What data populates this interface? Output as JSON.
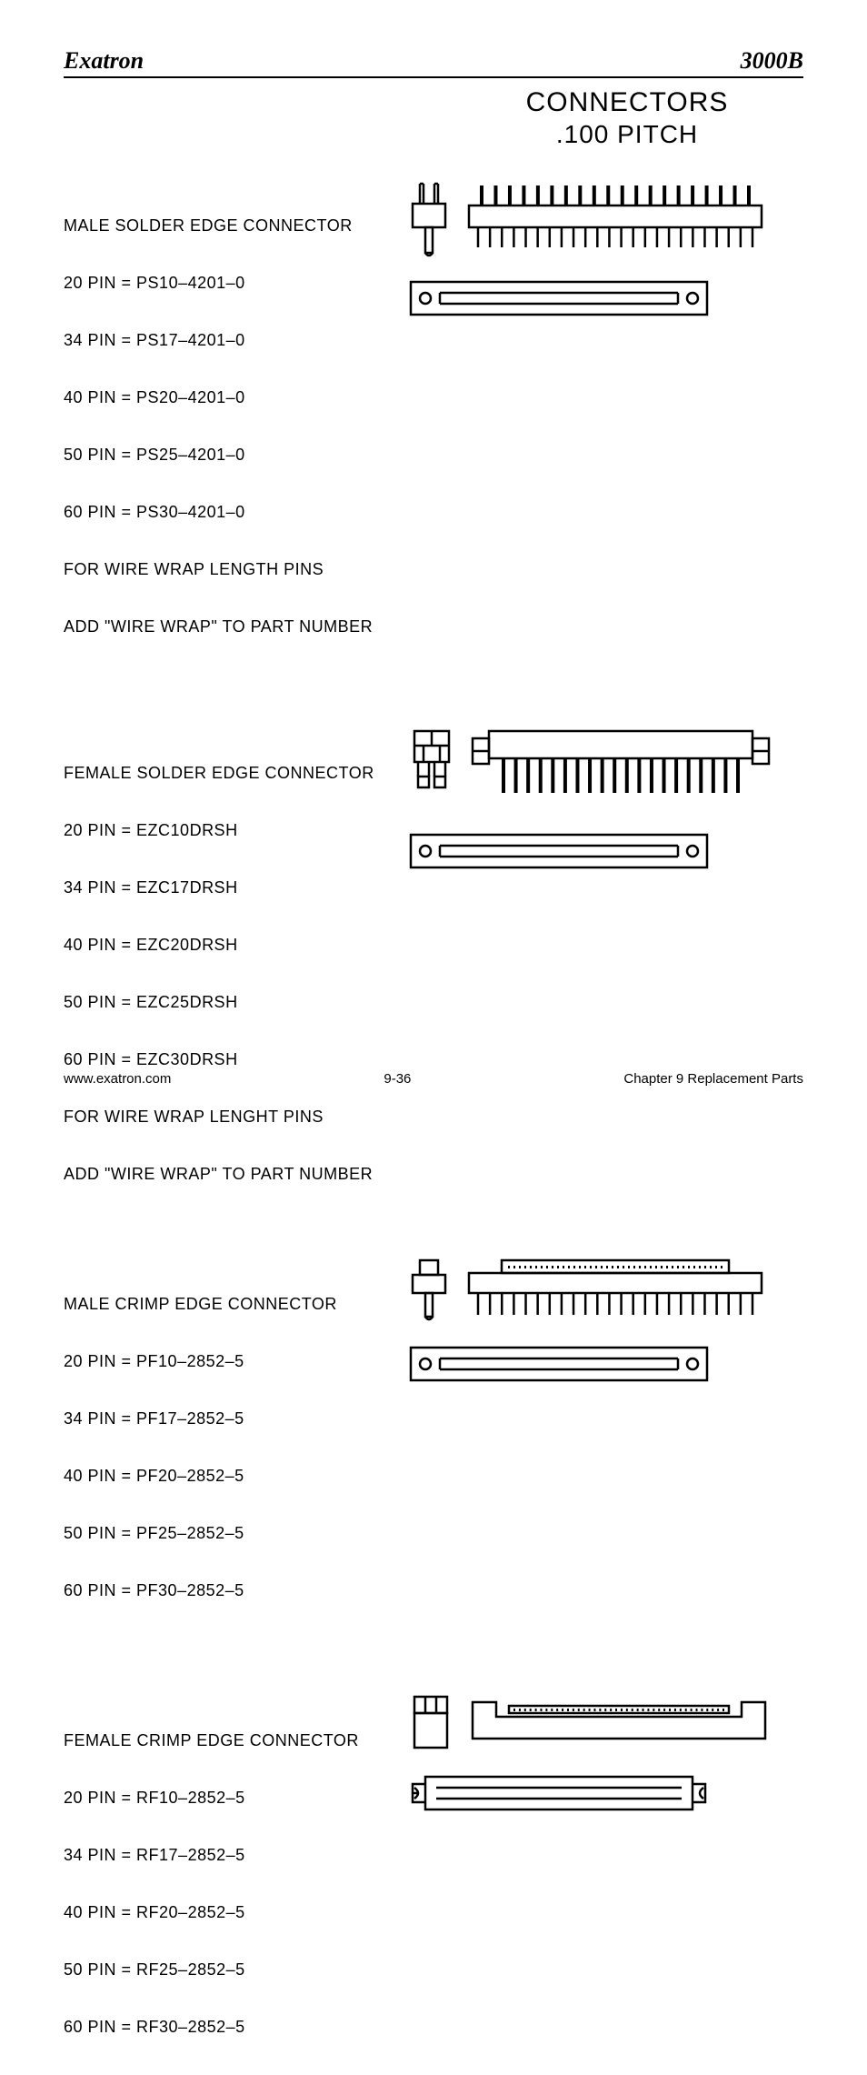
{
  "header": {
    "left": "Exatron",
    "right": "3000B"
  },
  "title": {
    "line1": "CONNECTORS",
    "line2": ".100 PITCH"
  },
  "sections": [
    {
      "heading": "MALE SOLDER EDGE CONNECTOR",
      "lines": [
        "20 PIN = PS10–4201–0",
        "34 PIN = PS17–4201–0",
        "40 PIN = PS20–4201–0",
        "50 PIN = PS25–4201–0",
        "60 PIN = PS30–4201–0",
        "FOR WIRE WRAP LENGTH PINS",
        "ADD \"WIRE WRAP\" TO PART NUMBER"
      ]
    },
    {
      "heading": "FEMALE SOLDER EDGE CONNECTOR",
      "lines": [
        "20 PIN = EZC10DRSH",
        "34 PIN = EZC17DRSH",
        "40 PIN = EZC20DRSH",
        "50 PIN = EZC25DRSH",
        "60 PIN = EZC30DRSH",
        "FOR WIRE WRAP LENGHT PINS",
        "ADD \"WIRE WRAP\" TO PART NUMBER"
      ]
    },
    {
      "heading": "MALE CRIMP EDGE CONNECTOR",
      "lines": [
        "20 PIN = PF10–2852–5",
        "34 PIN = PF17–2852–5",
        "40 PIN = PF20–2852–5",
        "50 PIN = PF25–2852–5",
        "60 PIN = PF30–2852–5"
      ]
    },
    {
      "heading": "FEMALE CRIMP EDGE CONNECTOR",
      "lines": [
        "20 PIN = RF10–2852–5",
        "34 PIN = RF17–2852–5",
        "40 PIN = RF20–2852–5",
        "50 PIN = RF25–2852–5",
        "60 PIN = RF30–2852–5"
      ]
    }
  ],
  "footer": {
    "left": "www.exatron.com",
    "center": "9-36",
    "right": "Chapter 9 Replacement Parts"
  },
  "style": {
    "stroke": "#000000",
    "stroke_width": 2,
    "bg": "#ffffff",
    "pin_count": 20,
    "tick_count": 24
  }
}
